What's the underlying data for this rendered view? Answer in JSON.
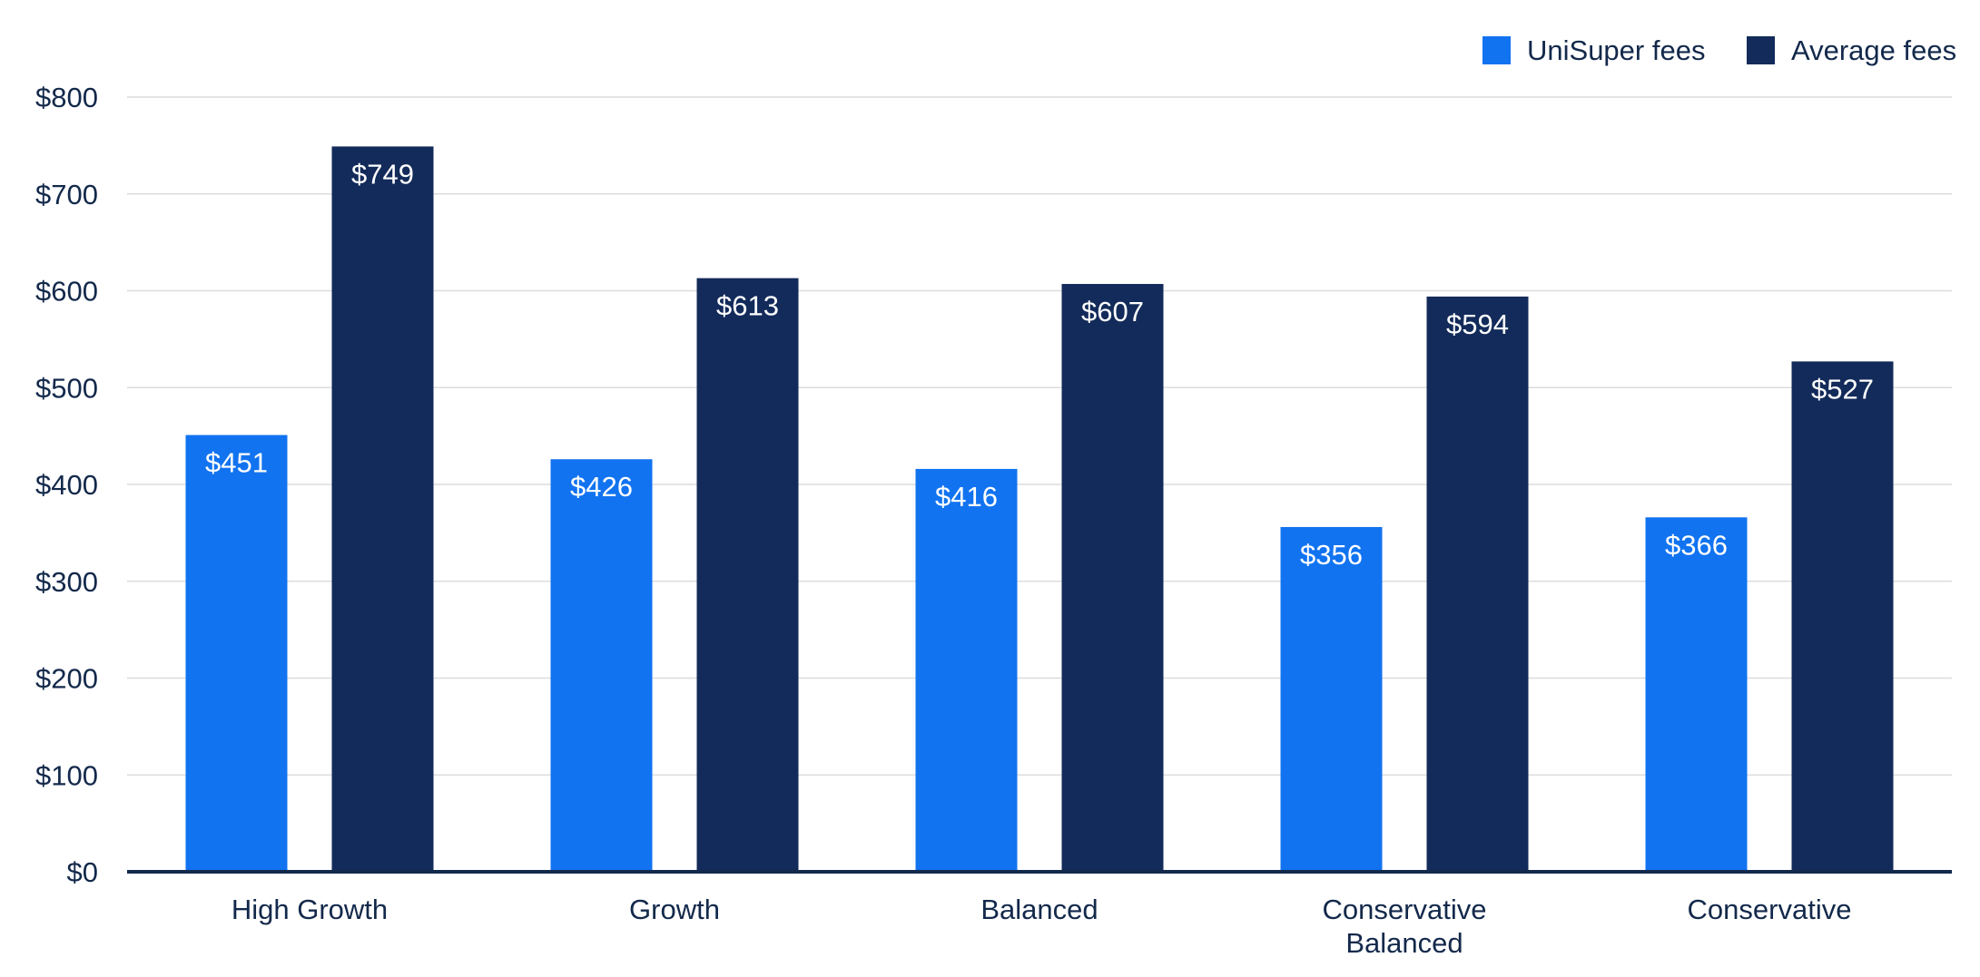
{
  "chart_data": {
    "type": "bar",
    "title": "",
    "xlabel": "",
    "ylabel": "",
    "categories": [
      [
        "High Growth"
      ],
      [
        "Growth"
      ],
      [
        "Balanced"
      ],
      [
        "Conservative",
        "Balanced"
      ],
      [
        "Conservative"
      ]
    ],
    "series": [
      {
        "name": "UniSuper fees",
        "color": "#1173f0",
        "values": [
          451,
          426,
          416,
          356,
          366
        ],
        "labels": [
          "$451",
          "$426",
          "$416",
          "$356",
          "$366"
        ]
      },
      {
        "name": "Average fees",
        "color": "#132b5a",
        "values": [
          749,
          613,
          607,
          594,
          527
        ],
        "labels": [
          "$749",
          "$613",
          "$607",
          "$594",
          "$527"
        ]
      }
    ],
    "ylim": [
      0,
      800
    ],
    "yticks": [
      0,
      100,
      200,
      300,
      400,
      500,
      600,
      700,
      800
    ],
    "ytick_labels": [
      "$0",
      "$100",
      "$200",
      "$300",
      "$400",
      "$500",
      "$600",
      "$700",
      "$800"
    ],
    "grid": true,
    "legend_position": "top-right",
    "baseline_color": "#13294b"
  }
}
